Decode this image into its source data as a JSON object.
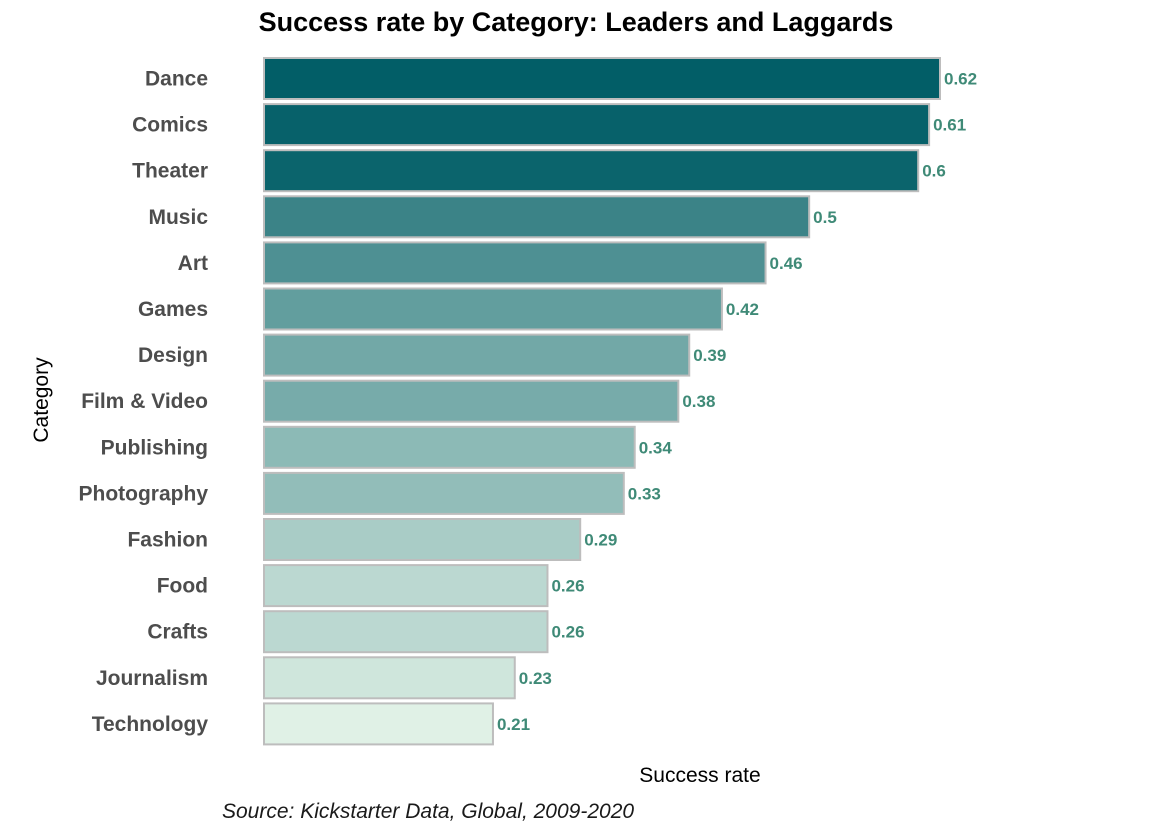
{
  "chart_data": {
    "type": "bar",
    "orientation": "horizontal",
    "title": "Success rate by Category: Leaders and Laggards",
    "xlabel": "Success rate",
    "ylabel": "Category",
    "caption": "Source: Kickstarter Data, Global, 2009-2020",
    "xlim": [
      0,
      0.62
    ],
    "grid": false,
    "legend": "none",
    "categories": [
      "Dance",
      "Comics",
      "Theater",
      "Music",
      "Art",
      "Games",
      "Design",
      "Film & Video",
      "Publishing",
      "Photography",
      "Fashion",
      "Food",
      "Crafts",
      "Journalism",
      "Technology"
    ],
    "values": [
      0.62,
      0.61,
      0.6,
      0.5,
      0.46,
      0.42,
      0.39,
      0.38,
      0.34,
      0.33,
      0.29,
      0.26,
      0.26,
      0.23,
      0.21
    ],
    "value_labels": [
      "0.62",
      "0.61",
      "0.6",
      "0.5",
      "0.46",
      "0.42",
      "0.39",
      "0.38",
      "0.34",
      "0.33",
      "0.29",
      "0.26",
      "0.26",
      "0.23",
      "0.21"
    ],
    "color_scale": {
      "low": "#e0f1e6",
      "high": "#025e67"
    },
    "value_label_color": "#3f8a77"
  }
}
